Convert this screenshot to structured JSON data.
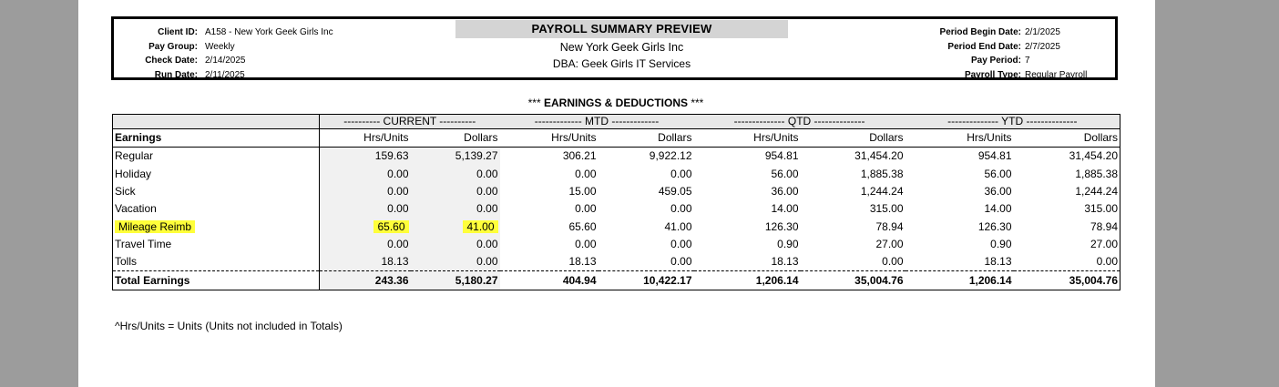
{
  "header": {
    "left": [
      {
        "k": "Client ID:",
        "v": "A158 - New York Geek Girls Inc"
      },
      {
        "k": "Pay Group:",
        "v": "Weekly"
      },
      {
        "k": "Check Date:",
        "v": "2/14/2025"
      },
      {
        "k": "Run Date:",
        "v": "2/11/2025"
      }
    ],
    "title": "PAYROLL SUMMARY PREVIEW",
    "company": "New York Geek Girls Inc",
    "dba": "DBA: Geek Girls IT Services",
    "right": [
      {
        "k": "Period Begin Date:",
        "v": "2/1/2025"
      },
      {
        "k": "Period End Date:",
        "v": "2/7/2025"
      },
      {
        "k": "Pay Period:",
        "v": "7"
      },
      {
        "k": "Payroll Type:",
        "v": "Regular Payroll"
      }
    ]
  },
  "section": {
    "stars_left": "***",
    "title": "EARNINGS & DEDUCTIONS",
    "stars_right": "***"
  },
  "table": {
    "groups": [
      "---------- CURRENT ----------",
      "------------- MTD -------------",
      "-------------- QTD --------------",
      "-------------- YTD --------------"
    ],
    "headers": [
      "Earnings",
      "Hrs/Units",
      "Dollars",
      "Hrs/Units",
      "Dollars",
      "Hrs/Units",
      "Dollars",
      "Hrs/Units",
      "Dollars"
    ],
    "rows": [
      [
        "Regular",
        "159.63",
        "5,139.27",
        "306.21",
        "9,922.12",
        "954.81",
        "31,454.20",
        "954.81",
        "31,454.20"
      ],
      [
        "Holiday",
        "0.00",
        "0.00",
        "0.00",
        "0.00",
        "56.00",
        "1,885.38",
        "56.00",
        "1,885.38"
      ],
      [
        "Sick",
        "0.00",
        "0.00",
        "15.00",
        "459.05",
        "36.00",
        "1,244.24",
        "36.00",
        "1,244.24"
      ],
      [
        "Vacation",
        "0.00",
        "0.00",
        "0.00",
        "0.00",
        "14.00",
        "315.00",
        "14.00",
        "315.00"
      ],
      [
        "Mileage Reimb",
        "65.60",
        "41.00",
        "65.60",
        "41.00",
        "126.30",
        "78.94",
        "126.30",
        "78.94"
      ],
      [
        "Travel Time",
        "0.00",
        "0.00",
        "0.00",
        "0.00",
        "0.90",
        "27.00",
        "0.90",
        "27.00"
      ],
      [
        "Tolls",
        "18.13",
        "0.00",
        "18.13",
        "0.00",
        "18.13",
        "0.00",
        "18.13",
        "0.00"
      ]
    ],
    "total": [
      "Total Earnings",
      "243.36",
      "5,180.27",
      "404.94",
      "10,422.17",
      "1,206.14",
      "35,004.76",
      "1,206.14",
      "35,004.76"
    ]
  },
  "highlight_color": "#ffff3a",
  "footnote": "^Hrs/Units = Units (Units not included in Totals)"
}
